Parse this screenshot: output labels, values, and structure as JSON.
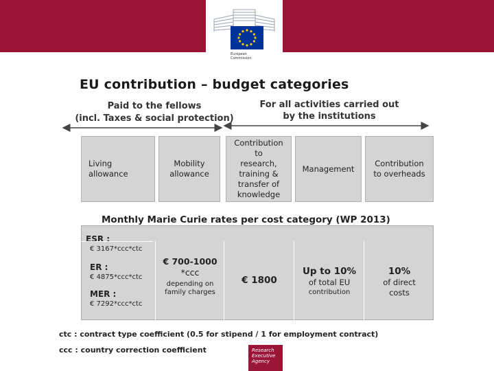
{
  "branding": {
    "org_line1": "European",
    "org_line2": "Commission",
    "footer_logo_line1": "Research",
    "footer_logo_line2": "Executive",
    "footer_logo_line3": "Agency",
    "brand_color": "#9a1536",
    "flag_color": "#003399",
    "star_color": "#ffcc00"
  },
  "slide": {
    "title": "EU contribution – budget categories",
    "left_header_line1": "Paid to the fellows",
    "left_header_line2": "(incl. Taxes & social protection)",
    "right_header_line1": "For all activities carried out",
    "right_header_line2": "by the institutions"
  },
  "categories": {
    "living_line1": "Living",
    "living_line2": "allowance",
    "mobility_line1": "Mobility",
    "mobility_line2": "allowance",
    "research_line1": "Contribution",
    "research_line2": "to",
    "research_line3": "research,",
    "research_line4": "training &",
    "research_line5": "transfer of",
    "research_line6": "knowledge",
    "management": "Management",
    "overheads_line1": "Contribution",
    "overheads_line2": "to overheads"
  },
  "rates": {
    "title": "Monthly Marie Curie rates per cost category (WP 2013)",
    "esr_label": "ESR :",
    "esr_value": "€ 3167*ccc*ctc",
    "er_label": "ER :",
    "er_value": "€ 4875*ccc*ctc",
    "mer_label": "MER :",
    "mer_value": "€ 7292*ccc*ctc",
    "mobility_line1": "€ 700-1000",
    "mobility_line2": "*ccc",
    "mobility_line3": "depending on",
    "mobility_line4": "family charges",
    "research_value": "€ 1800",
    "management_line1": "Up to 10%",
    "management_line2": "of total EU",
    "management_line3": "contribution",
    "overheads_line1": "10%",
    "overheads_line2": "of direct",
    "overheads_line3": "costs"
  },
  "footnotes": {
    "ctc": "ctc : contract type coefficient (0.5 for stipend / 1 for employment contract)",
    "ccc": "ccc : country correction coefficient"
  }
}
